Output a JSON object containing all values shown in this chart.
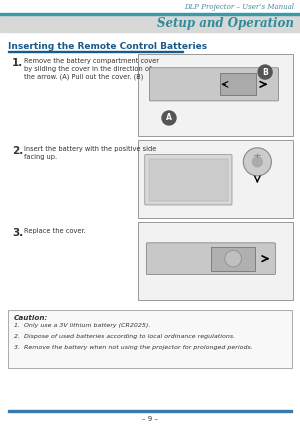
{
  "page_bg": "#ffffff",
  "header_line_color": "#3a9aaa",
  "header_text": "DLP Projector – User’s Manual",
  "header_text_color": "#4a8a9a",
  "section_bg": "#d8d8d8",
  "section_title": "Setup and Operation",
  "section_title_color": "#2e8b9a",
  "heading": "Inserting the Remote Control Batteries",
  "heading_color": "#1a5a8a",
  "step1_num": "1.",
  "step1_text": "Remove the battery compartment cover\nby sliding the cover in the direction of\nthe arrow. (A) Pull out the cover. (B)",
  "step2_num": "2.",
  "step2_text": "Insert the battery with the positive side\nfacing up.",
  "step3_num": "3.",
  "step3_text": "Replace the cover.",
  "caution_title": "Caution:",
  "caution_line1": "1.  Only use a 3V lithium battery (CR2025).",
  "caution_line2": "2.  Dispose of used batteries according to local ordinance regulations.",
  "caution_line3": "3.  Remove the battery when not using the projector for prolonged periods.",
  "footer_text": "– 9 –",
  "footer_line_color": "#3a7aaa",
  "text_color": "#333333",
  "box_border_color": "#999999",
  "caution_box_border": "#aaaaaa",
  "caution_bg": "#f8f8f8",
  "img_bg": "#f2f2f2",
  "img_inner_bg": "#e8e8e8"
}
